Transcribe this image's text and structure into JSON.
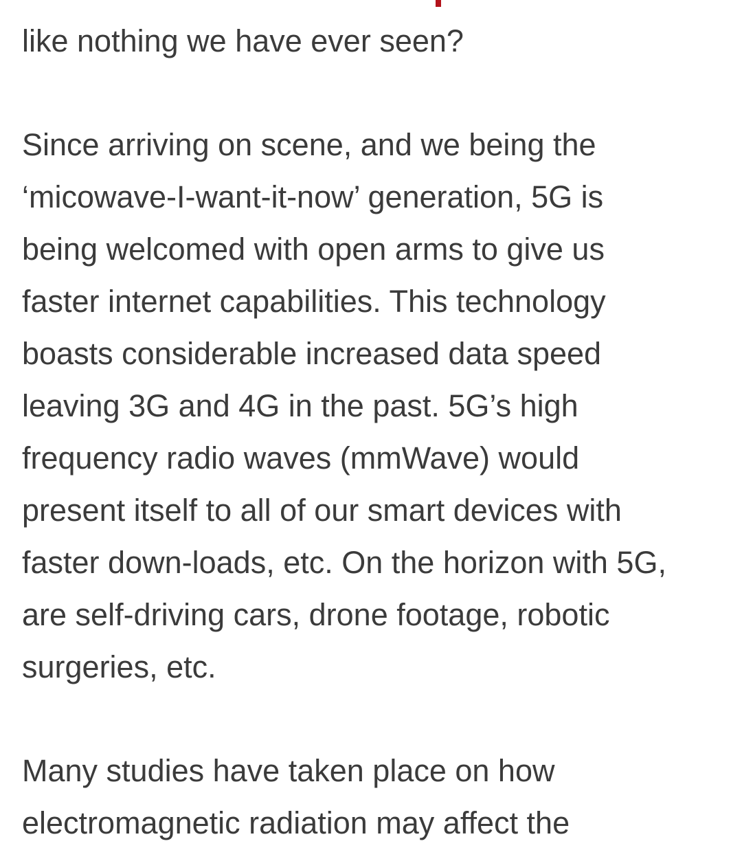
{
  "article": {
    "accent_color": "#b3131b",
    "text_color": "#3b3b3b",
    "paragraphs": [
      {
        "lines": [
          "like nothing we have ever seen?"
        ]
      },
      {
        "lines": [
          "Since arriving on scene, and we being the",
          "‘micowave-I-want-it-now’ generation, 5G is",
          "being welcomed with open arms to give us",
          "faster internet capabilities.  This technology",
          "boasts considerable increased data speed",
          "leaving 3G and 4G in the past. 5G’s high",
          "frequency radio waves (mmWave) would",
          "present itself to all of our smart devices with",
          "faster down-loads, etc. On the horizon with 5G,",
          "are self-driving cars, drone footage, robotic",
          "surgeries, etc."
        ]
      },
      {
        "lines": [
          "Many studies have taken place on how",
          "electromagnetic radiation may affect the"
        ]
      }
    ]
  }
}
